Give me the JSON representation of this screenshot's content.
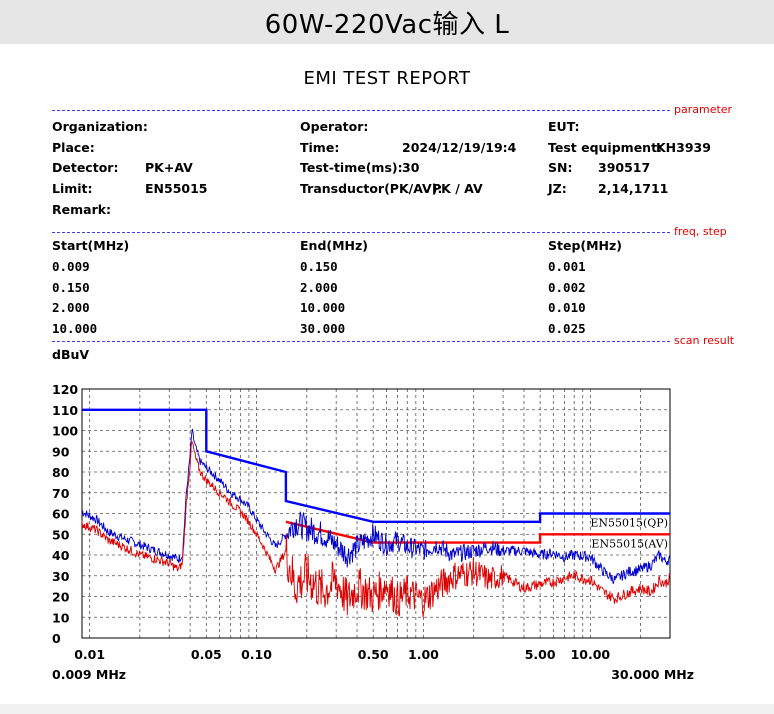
{
  "banner": {
    "title": "60W-220Vac输入 L"
  },
  "report": {
    "title": "EMI TEST REPORT"
  },
  "sections": {
    "parameter": "parameter",
    "freq_step": "freq, step",
    "scan_result": "scan result"
  },
  "params": {
    "organization_label": "Organization:",
    "organization_value": "",
    "place_label": "Place:",
    "detector_label": "Detector:",
    "detector_value": "PK+AV",
    "limit_label": "Limit:",
    "limit_value": "EN55015",
    "remark_label": "Remark:",
    "operator_label": "Operator:",
    "time_label": "Time:",
    "time_value": "2024/12/19/19:4",
    "test_time_label": "Test-time(ms):",
    "test_time_value": "30",
    "transductor_label": "Transductor(PK/AV):",
    "transductor_value": "PK  /  AV",
    "eut_label": "EUT:",
    "equipment_label": "Test equipment:",
    "equipment_value": "KH3939",
    "sn_label": "SN:",
    "sn_value": "390517",
    "jz_label": "JZ:",
    "jz_value": "2,14,1711"
  },
  "freq_table": {
    "headers": [
      "Start(MHz)",
      "End(MHz)",
      "Step(MHz)"
    ],
    "rows": [
      [
        "0.009",
        "0.150",
        "0.001"
      ],
      [
        "0.150",
        "2.000",
        "0.002"
      ],
      [
        "2.000",
        "10.000",
        "0.010"
      ],
      [
        "10.000",
        "30.000",
        "0.025"
      ]
    ]
  },
  "chart_data": {
    "type": "line",
    "ylabel": "dBuV",
    "xscale": "log",
    "xlim": [
      0.009,
      30
    ],
    "ylim": [
      0,
      120
    ],
    "yticks": [
      0,
      10,
      20,
      30,
      40,
      50,
      60,
      70,
      80,
      90,
      100,
      110,
      120
    ],
    "xtick_labels": [
      {
        "x": 0.01,
        "label": "0.01"
      },
      {
        "x": 0.05,
        "label": "0.05"
      },
      {
        "x": 0.1,
        "label": "0.10"
      },
      {
        "x": 0.5,
        "label": "0.50"
      },
      {
        "x": 1,
        "label": "1.00"
      },
      {
        "x": 5,
        "label": "5.00"
      },
      {
        "x": 10,
        "label": "10.00"
      }
    ],
    "x_start_label": "0.009 MHz",
    "x_end_label": "30.000 MHz",
    "grid": true,
    "limits": [
      {
        "name": "EN55015(QP)",
        "color": "#0000ff",
        "points": [
          [
            0.009,
            110
          ],
          [
            0.05,
            110
          ],
          [
            0.05,
            90
          ],
          [
            0.15,
            80
          ],
          [
            0.15,
            66
          ],
          [
            0.5,
            56
          ],
          [
            5,
            56
          ],
          [
            5,
            60
          ],
          [
            30,
            60
          ]
        ]
      },
      {
        "name": "EN55015(AV)",
        "color": "#ff0000",
        "points": [
          [
            0.15,
            56
          ],
          [
            0.5,
            46
          ],
          [
            5,
            46
          ],
          [
            5,
            50
          ],
          [
            30,
            50
          ]
        ]
      }
    ],
    "series": [
      {
        "color": "#0000cc",
        "points": [
          [
            0.009,
            61
          ],
          [
            0.011,
            57
          ],
          [
            0.013,
            51
          ],
          [
            0.016,
            48
          ],
          [
            0.02,
            45
          ],
          [
            0.025,
            42
          ],
          [
            0.03,
            40
          ],
          [
            0.034,
            38
          ],
          [
            0.036,
            40
          ],
          [
            0.038,
            70
          ],
          [
            0.04,
            88
          ],
          [
            0.041,
            100
          ],
          [
            0.043,
            92
          ],
          [
            0.046,
            85
          ],
          [
            0.05,
            82
          ],
          [
            0.055,
            79
          ],
          [
            0.06,
            76
          ],
          [
            0.065,
            73
          ],
          [
            0.07,
            70
          ],
          [
            0.08,
            67
          ],
          [
            0.09,
            63
          ],
          [
            0.1,
            57
          ],
          [
            0.11,
            52
          ],
          [
            0.12,
            48
          ],
          [
            0.13,
            44
          ],
          [
            0.15,
            50
          ],
          [
            0.17,
            56
          ],
          [
            0.2,
            53
          ],
          [
            0.25,
            50
          ],
          [
            0.3,
            45
          ],
          [
            0.35,
            40
          ],
          [
            0.4,
            44
          ],
          [
            0.5,
            50
          ],
          [
            0.6,
            45
          ],
          [
            0.7,
            47
          ],
          [
            0.8,
            44
          ],
          [
            1,
            42
          ],
          [
            1.2,
            45
          ],
          [
            1.5,
            40
          ],
          [
            2,
            42
          ],
          [
            2.5,
            44
          ],
          [
            3,
            42
          ],
          [
            4,
            42
          ],
          [
            5,
            40
          ],
          [
            6,
            41
          ],
          [
            7,
            39
          ],
          [
            8,
            40
          ],
          [
            10,
            39
          ],
          [
            12,
            32
          ],
          [
            14,
            28
          ],
          [
            17,
            32
          ],
          [
            20,
            33
          ],
          [
            23,
            35
          ],
          [
            26,
            40
          ],
          [
            28,
            37
          ],
          [
            30,
            38
          ]
        ]
      },
      {
        "color": "#dd0000",
        "points": [
          [
            0.009,
            55
          ],
          [
            0.011,
            52
          ],
          [
            0.013,
            47
          ],
          [
            0.016,
            44
          ],
          [
            0.02,
            40
          ],
          [
            0.025,
            38
          ],
          [
            0.03,
            36
          ],
          [
            0.034,
            33
          ],
          [
            0.036,
            36
          ],
          [
            0.038,
            65
          ],
          [
            0.04,
            84
          ],
          [
            0.041,
            95
          ],
          [
            0.043,
            87
          ],
          [
            0.046,
            80
          ],
          [
            0.05,
            76
          ],
          [
            0.055,
            73
          ],
          [
            0.06,
            70
          ],
          [
            0.065,
            68
          ],
          [
            0.07,
            65
          ],
          [
            0.08,
            61
          ],
          [
            0.09,
            56
          ],
          [
            0.1,
            50
          ],
          [
            0.11,
            44
          ],
          [
            0.12,
            38
          ],
          [
            0.13,
            33
          ],
          [
            0.15,
            42
          ],
          [
            0.17,
            25
          ],
          [
            0.2,
            30
          ],
          [
            0.25,
            22
          ],
          [
            0.3,
            28
          ],
          [
            0.35,
            18
          ],
          [
            0.4,
            25
          ],
          [
            0.5,
            20
          ],
          [
            0.6,
            26
          ],
          [
            0.7,
            18
          ],
          [
            0.8,
            22
          ],
          [
            1,
            18
          ],
          [
            1.2,
            24
          ],
          [
            1.5,
            30
          ],
          [
            2,
            32
          ],
          [
            2.5,
            28
          ],
          [
            3,
            30
          ],
          [
            4,
            24
          ],
          [
            5,
            26
          ],
          [
            6,
            27
          ],
          [
            7,
            29
          ],
          [
            8,
            30
          ],
          [
            10,
            28
          ],
          [
            12,
            22
          ],
          [
            14,
            19
          ],
          [
            17,
            22
          ],
          [
            20,
            24
          ],
          [
            23,
            22
          ],
          [
            26,
            28
          ],
          [
            28,
            26
          ],
          [
            30,
            29
          ]
        ]
      }
    ]
  }
}
